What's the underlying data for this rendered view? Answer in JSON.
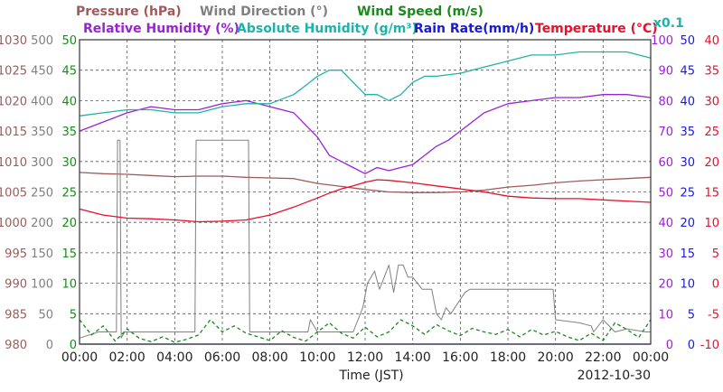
{
  "chart_data": {
    "type": "line",
    "date_label": "2012-10-30",
    "xlabel": "Time (JST)",
    "x_ticks": [
      "00:00",
      "02:00",
      "04:00",
      "06:00",
      "08:00",
      "10:00",
      "12:00",
      "14:00",
      "16:00",
      "18:00",
      "20:00",
      "22:00",
      "00:00"
    ],
    "grid": true,
    "multiplier_note": "x0.1",
    "headers": {
      "pressure": "Pressure (hPa)",
      "wind_direction": "Wind Direction (°)",
      "wind_speed": "Wind Speed (m/s)",
      "relative_humidity": "Relative Humidity (%)",
      "absolute_humidity": "Absolute Humidity (g/m³)",
      "rain_rate": "Rain Rate(mm/h)",
      "temperature": "Temperature (°C)"
    },
    "axes": {
      "pressure": {
        "color": "#a05a5a",
        "ticks": [
          "980",
          "985",
          "990",
          "995",
          "1000",
          "1005",
          "1010",
          "1015",
          "1020",
          "1025",
          "1030"
        ]
      },
      "wind_direction": {
        "color": "#808080",
        "ticks": [
          "0",
          "50",
          "100",
          "150",
          "200",
          "250",
          "300",
          "350",
          "400",
          "450",
          "500"
        ]
      },
      "wind_speed": {
        "color": "#1a8a1a",
        "ticks": [
          "0",
          "5",
          "10",
          "15",
          "20",
          "25",
          "30",
          "35",
          "40",
          "45",
          "50"
        ]
      },
      "relative_humidity": {
        "color": "#9a22d6",
        "ticks": [
          "0",
          "10",
          "20",
          "30",
          "40",
          "50",
          "60",
          "70",
          "80",
          "90",
          "100"
        ]
      },
      "rain_rate": {
        "color": "#1a1ad6",
        "ticks": [
          "0",
          "5",
          "10",
          "15",
          "20",
          "25",
          "30",
          "35",
          "40",
          "45",
          "50"
        ]
      },
      "temperature": {
        "color": "#e8102a",
        "ticks": [
          "-10",
          "-5",
          "0",
          "5",
          "10",
          "15",
          "20",
          "25",
          "30",
          "35",
          "40"
        ]
      }
    },
    "series": [
      {
        "name": "Pressure (hPa)",
        "color": "#a05a5a",
        "scale": "pressure",
        "x": [
          0,
          1,
          2,
          3,
          4,
          5,
          6,
          7,
          8,
          9,
          10,
          11,
          12,
          13,
          14,
          15,
          16,
          17,
          18,
          19,
          20,
          21,
          22,
          23,
          24
        ],
        "y": [
          1008.2,
          1008.0,
          1007.9,
          1007.7,
          1007.5,
          1007.6,
          1007.6,
          1007.4,
          1007.3,
          1007.2,
          1006.4,
          1005.9,
          1005.4,
          1005.0,
          1004.9,
          1004.9,
          1005.0,
          1005.3,
          1005.8,
          1006.1,
          1006.5,
          1006.8,
          1007.0,
          1007.2,
          1007.4
        ]
      },
      {
        "name": "Wind Direction (°)",
        "color": "#808080",
        "scale": "wind_direction",
        "x": [
          0,
          0.8,
          1.55,
          1.6,
          1.7,
          1.75,
          1.9,
          4.85,
          4.9,
          5.0,
          7.1,
          7.15,
          9.6,
          9.7,
          10.0,
          11.5,
          11.9,
          12.1,
          12.4,
          12.6,
          12.8,
          13.0,
          13.2,
          13.4,
          13.6,
          13.8,
          14.0,
          14.4,
          14.8,
          15.0,
          15.2,
          15.4,
          15.6,
          16.2,
          16.4,
          17.0,
          17.5,
          18.0,
          19.0,
          19.9,
          20.0,
          21.0,
          21.5,
          21.6,
          22.0,
          22.5,
          23.0,
          23.8,
          24
        ],
        "y": [
          10,
          20,
          20,
          335,
          335,
          10,
          20,
          20,
          335,
          335,
          335,
          20,
          20,
          40,
          20,
          20,
          60,
          100,
          120,
          90,
          110,
          130,
          85,
          130,
          130,
          110,
          110,
          90,
          90,
          50,
          40,
          60,
          50,
          85,
          90,
          90,
          90,
          90,
          90,
          90,
          40,
          35,
          30,
          20,
          40,
          20,
          25,
          20,
          20
        ]
      },
      {
        "name": "Wind Speed (m/s)",
        "color": "#1a8a1a",
        "scale": "wind_speed",
        "x": [
          0,
          0.5,
          1,
          1.5,
          2,
          2.5,
          3,
          3.5,
          4,
          4.5,
          5,
          5.5,
          6,
          6.5,
          7,
          7.5,
          8,
          8.5,
          9,
          9.5,
          10,
          10.5,
          11,
          11.5,
          12,
          12.5,
          13,
          13.5,
          14,
          14.5,
          15,
          15.5,
          16,
          16.5,
          17,
          17.5,
          18,
          18.5,
          19,
          19.5,
          20,
          20.5,
          21,
          21.5,
          22,
          22.5,
          23,
          23.5,
          24
        ],
        "y": [
          4,
          1.5,
          3,
          0.5,
          2.5,
          1,
          0.4,
          1.2,
          0.3,
          0.8,
          1.5,
          4,
          2,
          3,
          1.8,
          1.2,
          0.6,
          2.2,
          1.1,
          0.5,
          2,
          3.5,
          1.8,
          1,
          2.8,
          1.2,
          2,
          4,
          3,
          1.6,
          3.2,
          2.2,
          1.4,
          2.6,
          2,
          1.6,
          2.4,
          1.2,
          2.4,
          1.5,
          2.1,
          1.2,
          0.6,
          1.8,
          0.6,
          3.5,
          2.4,
          1.1,
          4
        ]
      },
      {
        "name": "Relative Humidity (%)",
        "color": "#9a22d6",
        "scale": "relative_humidity",
        "x": [
          0,
          1,
          2,
          3,
          4,
          5,
          6,
          7,
          8,
          9,
          9.5,
          10,
          10.5,
          11,
          11.5,
          12,
          12.5,
          13,
          13.5,
          14,
          14.5,
          15,
          15.5,
          16,
          17,
          18,
          19,
          20,
          21,
          22,
          23,
          24
        ],
        "y": [
          70,
          73,
          76,
          78,
          77,
          77,
          79,
          80,
          78,
          76,
          72,
          68,
          62,
          60,
          58,
          56,
          58,
          57,
          58,
          59,
          62,
          65,
          67,
          70,
          76,
          79,
          80,
          81,
          81,
          82,
          82,
          81
        ]
      },
      {
        "name": "Absolute Humidity (g/m³)",
        "color": "#20b2aa",
        "scale": "relative_humidity",
        "x": [
          0,
          1,
          2,
          3,
          4,
          5,
          6,
          7,
          8,
          9,
          9.5,
          10,
          10.5,
          11,
          11.5,
          12,
          12.5,
          13,
          13.5,
          14,
          14.5,
          15,
          16,
          17,
          18,
          19,
          20,
          21,
          22,
          23,
          24
        ],
        "y": [
          75,
          76,
          77,
          77,
          76,
          76,
          78,
          79,
          79,
          82,
          85,
          88,
          90,
          90,
          86,
          82,
          82,
          80,
          82,
          86,
          88,
          88,
          89,
          91,
          93,
          95,
          95,
          96,
          96,
          96,
          94
        ]
      },
      {
        "name": "Rain Rate(mm/h)",
        "color": "#1a1ad6",
        "scale": "rain_rate",
        "x": [
          0,
          24
        ],
        "y": [
          0,
          0
        ]
      },
      {
        "name": "Temperature (°C)",
        "color": "#e8102a",
        "scale": "temperature",
        "x": [
          0,
          1,
          2,
          3,
          4,
          5,
          6,
          7,
          8,
          9,
          10,
          10.5,
          11,
          11.5,
          12,
          12.5,
          13,
          14,
          15,
          16,
          17,
          18,
          19,
          20,
          21,
          22,
          23,
          24
        ],
        "y": [
          12.2,
          11.2,
          10.7,
          10.6,
          10.4,
          10.1,
          10.2,
          10.4,
          11.2,
          12.5,
          14.0,
          14.8,
          15.5,
          16.0,
          16.6,
          17.0,
          16.9,
          16.5,
          16.0,
          15.5,
          15.0,
          14.3,
          14.0,
          13.9,
          13.9,
          13.7,
          13.5,
          13.3
        ]
      }
    ]
  }
}
